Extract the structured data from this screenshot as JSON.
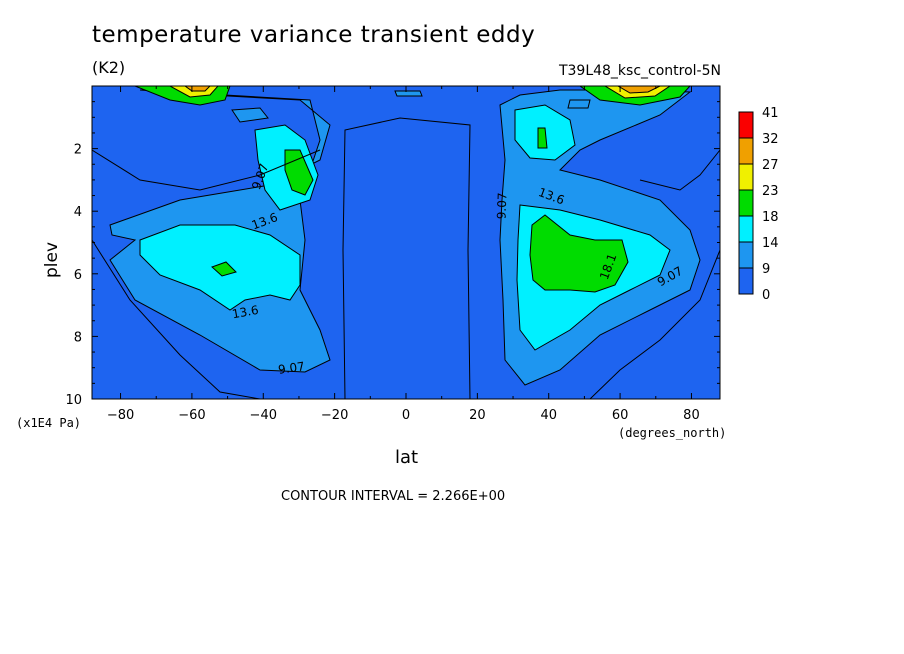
{
  "title": "temperature variance transient eddy",
  "units": "(K2)",
  "run_name": "T39L48_ksc_control-5N",
  "contour_interval": "CONTOUR INTERVAL = 2.266E+00",
  "colors": {
    "c0": "#1e64f0",
    "c9": "#1e96f0",
    "c14": "#00f0ff",
    "c18": "#00dc00",
    "c23": "#f0f000",
    "c27": "#f0a000",
    "c32": "#fa0000"
  },
  "chart_data": {
    "type": "heatmap",
    "title": "temperature variance transient eddy",
    "xlabel": "lat",
    "ylabel": "plev",
    "x_unit": "(degrees_north)",
    "y_unit": "(x1E4 Pa)",
    "xlim": [
      -88,
      88
    ],
    "ylim": [
      10,
      0
    ],
    "xticks": [
      -80,
      -60,
      -40,
      -20,
      0,
      20,
      40,
      60,
      80
    ],
    "yticks": [
      2,
      4,
      6,
      8,
      10
    ],
    "colorbar_levels": [
      "41",
      "32",
      "27",
      "23",
      "18",
      "14",
      "9",
      "0"
    ],
    "contour_labels": [
      "9.07",
      "13.6",
      "9.07",
      "13.6",
      "9.07",
      "13.6",
      "18.1",
      "9.07",
      "9.07"
    ],
    "contour_interval": 2.266
  }
}
